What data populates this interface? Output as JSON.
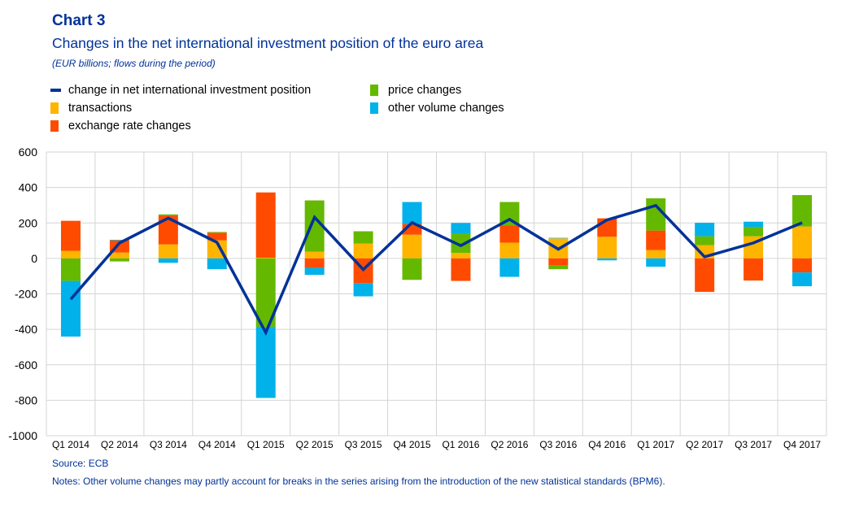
{
  "header": {
    "chart_number": "Chart 3",
    "title": "Changes in the net international investment position of the euro area",
    "subtitle": "(EUR billions; flows during the period)"
  },
  "legend": [
    {
      "key": "niip",
      "label": "change in net international  investment position",
      "type": "line",
      "color": "#003299"
    },
    {
      "key": "transactions",
      "label": "transactions",
      "type": "bar",
      "color": "#FFB400"
    },
    {
      "key": "exchange",
      "label": "exchange rate changes",
      "type": "bar",
      "color": "#FF4B00"
    },
    {
      "key": "price",
      "label": "price changes",
      "type": "bar",
      "color": "#65B800"
    },
    {
      "key": "othervol",
      "label": "other volume changes",
      "type": "bar",
      "color": "#00B1EA"
    }
  ],
  "footer": {
    "source": "Source: ECB",
    "notes": "Notes: Other volume changes may partly account for breaks in the series arising from the introduction of  the new statistical standards (BPM6)."
  },
  "chart_data": {
    "type": "bar",
    "stacked": true,
    "title": "Changes in the net international investment position of the euro area",
    "subtitle": "(EUR billions; flows during the period)",
    "xlabel": "",
    "ylabel": "",
    "ylim": [
      -1000,
      600
    ],
    "yticks": [
      600,
      400,
      200,
      0,
      -200,
      -400,
      -600,
      -800,
      -1000
    ],
    "grid": true,
    "legend_position": "top",
    "categories": [
      "Q1 2014",
      "Q2 2014",
      "Q3 2014",
      "Q4 2014",
      "Q1 2015",
      "Q2 2015",
      "Q3 2015",
      "Q4 2015",
      "Q1 2016",
      "Q2 2016",
      "Q3 2016",
      "Q4 2016",
      "Q1 2017",
      "Q2 2017",
      "Q3 2017",
      "Q4 2017"
    ],
    "series": [
      {
        "name": "transactions",
        "key": "transactions",
        "type": "bar",
        "color": "#FFB400",
        "values": [
          43,
          33,
          79,
          102,
          4,
          38,
          84,
          134,
          31,
          89,
          113,
          122,
          47,
          75,
          125,
          180
        ]
      },
      {
        "name": "exchange rate changes",
        "key": "exchange",
        "type": "bar",
        "color": "#FF4B00",
        "values": [
          169,
          69,
          163,
          43,
          368,
          -53,
          -139,
          60,
          -127,
          96,
          -40,
          104,
          110,
          -189,
          -125,
          -79
        ]
      },
      {
        "name": "price changes",
        "key": "price",
        "type": "bar",
        "color": "#65B800",
        "values": [
          -127,
          -17,
          6,
          4,
          -386,
          289,
          69,
          -121,
          108,
          133,
          -21,
          0,
          182,
          50,
          53,
          177
        ]
      },
      {
        "name": "other volume changes",
        "key": "othervol",
        "type": "bar",
        "color": "#00B1EA",
        "values": [
          -314,
          3,
          -25,
          -61,
          -401,
          -40,
          -75,
          124,
          61,
          -104,
          3,
          -11,
          -47,
          76,
          29,
          -78
        ]
      },
      {
        "name": "change in net international investment position",
        "key": "niip",
        "type": "line",
        "color": "#003299",
        "values": [
          -230,
          87,
          227,
          90,
          -418,
          232,
          -63,
          202,
          72,
          220,
          52,
          217,
          298,
          9,
          87,
          201
        ]
      }
    ]
  }
}
